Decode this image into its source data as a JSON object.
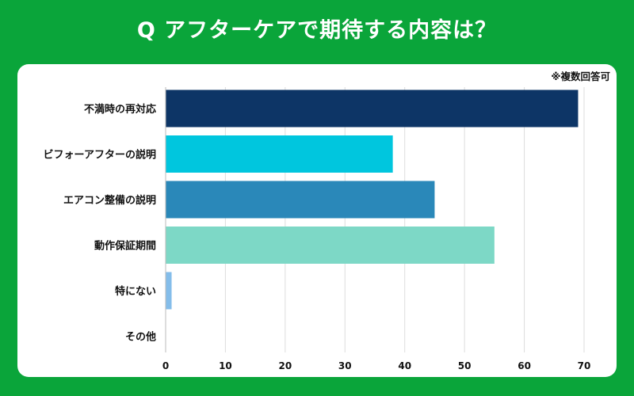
{
  "title": "Q アフターケアで期待する内容は？",
  "note": "※複数回答可",
  "chart_data": {
    "type": "bar",
    "orientation": "horizontal",
    "title": "Q アフターケアで期待する内容は？",
    "categories": [
      "不満時の再対応",
      "ビフォーアフターの説明",
      "エアコン整備の説明",
      "動作保証期間",
      "特にない",
      "その他"
    ],
    "values": [
      69,
      38,
      45,
      55,
      1,
      0
    ],
    "colors": [
      "#0d3566",
      "#00c6de",
      "#2a88b9",
      "#7dd8c6",
      "#84bdea",
      "#cccccc"
    ],
    "xlim": [
      0,
      70
    ],
    "xticks": [
      0,
      10,
      20,
      30,
      40,
      50,
      60,
      70
    ],
    "grid": true
  }
}
